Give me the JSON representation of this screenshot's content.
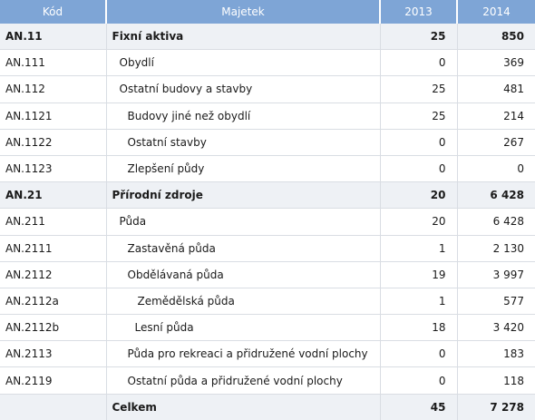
{
  "header": {
    "code": "Kód",
    "name": "Majetek",
    "year1": "2013",
    "year2": "2014"
  },
  "rows": [
    {
      "code": "AN.11",
      "name": "Fixní aktiva",
      "v2013": "25",
      "v2014": "850"
    },
    {
      "code": "AN.111",
      "name": "Obydlí",
      "v2013": "0",
      "v2014": "369"
    },
    {
      "code": "AN.112",
      "name": "Ostatní budovy a stavby",
      "v2013": "25",
      "v2014": "481"
    },
    {
      "code": "AN.1121",
      "name": "Budovy jiné než obydlí",
      "v2013": "25",
      "v2014": "214"
    },
    {
      "code": "AN.1122",
      "name": "Ostatní stavby",
      "v2013": "0",
      "v2014": "267"
    },
    {
      "code": "AN.1123",
      "name": "Zlepšení půdy",
      "v2013": "0",
      "v2014": "0"
    },
    {
      "code": "AN.21",
      "name": "Přírodní zdroje",
      "v2013": "20",
      "v2014": "6 428"
    },
    {
      "code": "AN.211",
      "name": "Půda",
      "v2013": "20",
      "v2014": "6 428"
    },
    {
      "code": "AN.2111",
      "name": "Zastavěná půda",
      "v2013": "1",
      "v2014": "2 130"
    },
    {
      "code": "AN.2112",
      "name": "Obdělávaná půda",
      "v2013": "19",
      "v2014": "3 997"
    },
    {
      "code": "AN.2112a",
      "name": "Zemědělská půda",
      "v2013": "1",
      "v2014": "577"
    },
    {
      "code": "AN.2112b",
      "name": "Lesní půda",
      "v2013": "18",
      "v2014": "3 420"
    },
    {
      "code": "AN.2113",
      "name": "Půda pro rekreaci a přidružené vodní plochy",
      "v2013": "0",
      "v2014": "183"
    },
    {
      "code": "AN.2119",
      "name": "Ostatní půda a přidružené vodní plochy",
      "v2013": "0",
      "v2014": "118"
    },
    {
      "code": "",
      "name": "Celkem",
      "v2013": "45",
      "v2014": "7 278"
    }
  ]
}
